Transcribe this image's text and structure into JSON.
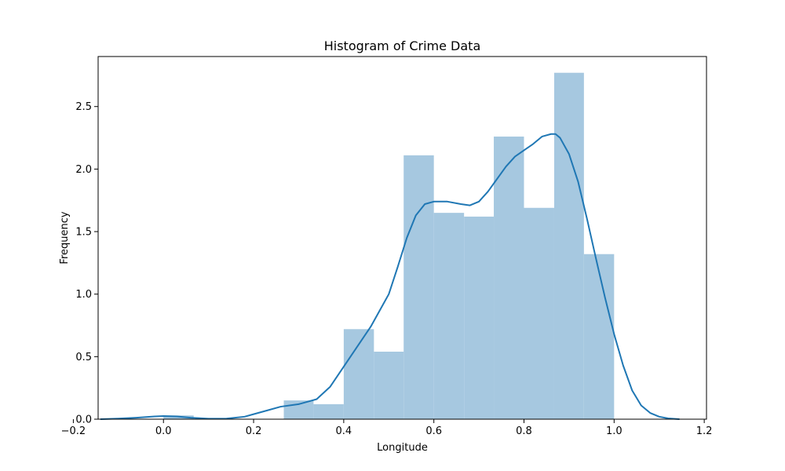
{
  "colors": {
    "bar_fill": "#a6c8e0",
    "kde_line": "#1f77b4",
    "axis": "#000000",
    "background": "#ffffff"
  },
  "chart_data": {
    "type": "bar",
    "subtype": "histogram-with-kde",
    "title": "Histogram of Crime Data",
    "xlabel": "Longitude",
    "ylabel": "Frequency",
    "xlim": [
      -0.145,
      1.205
    ],
    "ylim": [
      0.0,
      2.9
    ],
    "grid": false,
    "legend": "none",
    "x_ticks": [
      -0.2,
      0.0,
      0.2,
      0.4,
      0.6,
      0.8,
      1.0,
      1.2
    ],
    "x_tick_labels": [
      "−0.2",
      "0.0",
      "0.2",
      "0.4",
      "0.6",
      "0.8",
      "1.0",
      "1.2"
    ],
    "y_ticks": [
      0.0,
      0.5,
      1.0,
      1.5,
      2.0,
      2.5
    ],
    "y_tick_labels": [
      "0.0",
      "0.5",
      "1.0",
      "1.5",
      "2.0",
      "2.5"
    ],
    "bins": [
      {
        "x0": -0.0,
        "x1": 0.067,
        "value": 0.03
      },
      {
        "x0": 0.067,
        "x1": 0.133,
        "value": 0.0
      },
      {
        "x0": 0.133,
        "x1": 0.2,
        "value": 0.0
      },
      {
        "x0": 0.2,
        "x1": 0.267,
        "value": 0.0
      },
      {
        "x0": 0.267,
        "x1": 0.333,
        "value": 0.15
      },
      {
        "x0": 0.333,
        "x1": 0.4,
        "value": 0.12
      },
      {
        "x0": 0.4,
        "x1": 0.467,
        "value": 0.72
      },
      {
        "x0": 0.467,
        "x1": 0.533,
        "value": 0.54
      },
      {
        "x0": 0.533,
        "x1": 0.6,
        "value": 2.11
      },
      {
        "x0": 0.6,
        "x1": 0.667,
        "value": 1.65
      },
      {
        "x0": 0.667,
        "x1": 0.733,
        "value": 1.62
      },
      {
        "x0": 0.733,
        "x1": 0.8,
        "value": 2.26
      },
      {
        "x0": 0.8,
        "x1": 0.867,
        "value": 1.69
      },
      {
        "x0": 0.867,
        "x1": 0.933,
        "value": 2.77
      },
      {
        "x0": 0.933,
        "x1": 1.0,
        "value": 1.32
      }
    ],
    "kde": {
      "x": [
        -0.14,
        -0.1,
        -0.06,
        -0.02,
        0.0,
        0.03,
        0.06,
        0.1,
        0.14,
        0.18,
        0.2,
        0.23,
        0.26,
        0.3,
        0.34,
        0.37,
        0.4,
        0.43,
        0.46,
        0.5,
        0.52,
        0.54,
        0.56,
        0.58,
        0.6,
        0.63,
        0.66,
        0.68,
        0.7,
        0.72,
        0.74,
        0.76,
        0.78,
        0.8,
        0.82,
        0.84,
        0.86,
        0.87,
        0.88,
        0.9,
        0.92,
        0.94,
        0.96,
        0.98,
        1.0,
        1.02,
        1.04,
        1.06,
        1.08,
        1.1,
        1.12,
        1.145
      ],
      "y": [
        0.0,
        0.005,
        0.012,
        0.022,
        0.025,
        0.022,
        0.012,
        0.004,
        0.005,
        0.02,
        0.04,
        0.07,
        0.1,
        0.12,
        0.16,
        0.26,
        0.42,
        0.58,
        0.74,
        1.0,
        1.22,
        1.45,
        1.63,
        1.72,
        1.74,
        1.74,
        1.72,
        1.71,
        1.74,
        1.82,
        1.92,
        2.02,
        2.1,
        2.15,
        2.2,
        2.26,
        2.28,
        2.28,
        2.25,
        2.12,
        1.9,
        1.6,
        1.28,
        0.97,
        0.68,
        0.43,
        0.23,
        0.11,
        0.05,
        0.02,
        0.006,
        0.0
      ]
    }
  }
}
